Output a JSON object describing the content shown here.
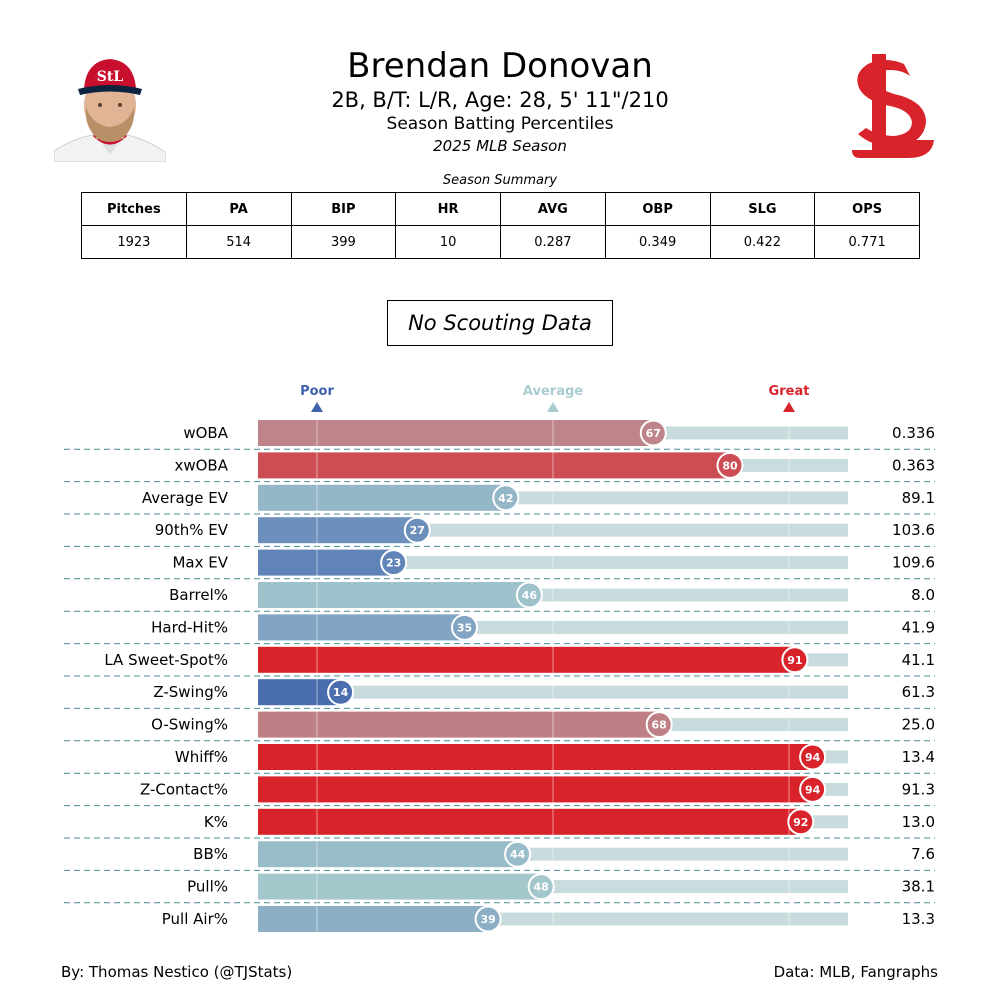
{
  "header": {
    "player_name": "Brendan Donovan",
    "player_info": "2B, B/T: L/R, Age: 28, 5' 11\"/210",
    "report_title": "Season Batting Percentiles",
    "season": "2025 MLB Season"
  },
  "summary": {
    "label": "Season Summary",
    "headers": [
      "Pitches",
      "PA",
      "BIP",
      "HR",
      "AVG",
      "OBP",
      "SLG",
      "OPS"
    ],
    "values": [
      "1923",
      "514",
      "399",
      "10",
      "0.287",
      "0.349",
      "0.422",
      "0.771"
    ]
  },
  "scouting_box": "No Scouting Data",
  "footer": {
    "credit": "By: Thomas Nestico (@TJStats)",
    "source": "Data: MLB, Fangraphs"
  },
  "colors": {
    "poor": "#3f62ad",
    "average": "#a9ccce",
    "great": "#d9232b",
    "track": "#c8dcdd"
  },
  "icons": {
    "headshot": "player-headshot-icon",
    "logo": "cardinals-stl-logo-icon"
  },
  "chart_data": {
    "type": "bar",
    "orientation": "horizontal",
    "xlim": [
      0,
      100
    ],
    "scale_markers": [
      {
        "label": "Poor",
        "value": 10
      },
      {
        "label": "Average",
        "value": 50
      },
      {
        "label": "Great",
        "value": 90
      }
    ],
    "categories": [
      "wOBA",
      "xwOBA",
      "Average EV",
      "90th% EV",
      "Max EV",
      "Barrel%",
      "Hard-Hit%",
      "LA Sweet-Spot%",
      "Z-Swing%",
      "O-Swing%",
      "Whiff%",
      "Z-Contact%",
      "K%",
      "BB%",
      "Pull%",
      "Pull Air%"
    ],
    "percentiles": [
      67,
      80,
      42,
      27,
      23,
      46,
      35,
      91,
      14,
      68,
      94,
      94,
      92,
      44,
      48,
      39
    ],
    "stat_values": [
      "0.336",
      "0.363",
      "89.1",
      "103.6",
      "109.6",
      "8.0",
      "41.9",
      "41.1",
      "61.3",
      "25.0",
      "13.4",
      "91.3",
      "13.0",
      "7.6",
      "38.1",
      "13.3"
    ]
  }
}
